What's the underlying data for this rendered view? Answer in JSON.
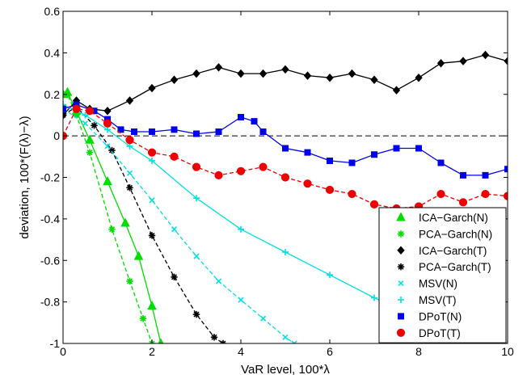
{
  "chart_data": {
    "type": "line",
    "xlabel": "VaR level, 100*λ",
    "ylabel": "deviation, 100*(F(λ)−λ)",
    "xlim": [
      0,
      10
    ],
    "ylim": [
      -1,
      0.6
    ],
    "xticks": [
      0,
      2,
      4,
      6,
      8,
      10
    ],
    "yticks": [
      -1,
      -0.8,
      -0.6,
      -0.4,
      -0.2,
      0,
      0.2,
      0.4,
      0.6
    ],
    "grid": false,
    "reference_line": {
      "y": 0,
      "style": "dashed",
      "color": "#000000"
    },
    "legend_position": "bottom-right",
    "series": [
      {
        "name": "ICA−Garch(N)",
        "color": "#00dd00",
        "marker": "triangle",
        "line": "solid",
        "x": [
          0,
          0.1,
          0.3,
          0.6,
          1.0,
          1.4,
          1.7,
          2.0,
          2.2
        ],
        "y": [
          0.2,
          0.21,
          0.12,
          -0.02,
          -0.22,
          -0.42,
          -0.58,
          -0.82,
          -1.0
        ]
      },
      {
        "name": "PCA−Garch(N)",
        "color": "#00dd00",
        "marker": "star",
        "line": "dashed",
        "x": [
          0,
          0.1,
          0.3,
          0.6,
          1.1,
          1.5,
          1.8,
          2.0
        ],
        "y": [
          0.2,
          0.2,
          0.1,
          -0.08,
          -0.45,
          -0.7,
          -0.88,
          -1.0
        ]
      },
      {
        "name": "ICA−Garch(T)",
        "color": "#000000",
        "marker": "diamond",
        "line": "solid",
        "x": [
          0,
          0.3,
          0.6,
          1.0,
          1.5,
          2.0,
          2.5,
          3.0,
          3.5,
          4.0,
          4.5,
          5.0,
          5.5,
          6.0,
          6.5,
          7.0,
          7.5,
          8.0,
          8.5,
          9.0,
          9.5,
          10.0
        ],
        "y": [
          0.1,
          0.17,
          0.13,
          0.12,
          0.17,
          0.23,
          0.27,
          0.3,
          0.33,
          0.3,
          0.3,
          0.32,
          0.29,
          0.28,
          0.3,
          0.27,
          0.22,
          0.28,
          0.35,
          0.36,
          0.39,
          0.36
        ]
      },
      {
        "name": "PCA−Garch(T)",
        "color": "#000000",
        "marker": "star",
        "line": "dashed",
        "x": [
          0,
          0.3,
          0.7,
          1.1,
          1.5,
          2.0,
          2.5,
          3.0,
          3.4,
          3.6
        ],
        "y": [
          0.1,
          0.14,
          0.05,
          -0.07,
          -0.25,
          -0.48,
          -0.68,
          -0.86,
          -0.97,
          -1.0
        ]
      },
      {
        "name": "MSV(N)",
        "color": "#00e0e0",
        "marker": "x",
        "line": "dashed",
        "x": [
          0,
          0.5,
          1.0,
          1.5,
          2.0,
          2.5,
          3.0,
          3.5,
          4.0,
          4.5,
          5.0,
          5.2
        ],
        "y": [
          0.13,
          0.06,
          -0.05,
          -0.18,
          -0.31,
          -0.45,
          -0.58,
          -0.7,
          -0.79,
          -0.88,
          -0.97,
          -1.0
        ]
      },
      {
        "name": "MSV(T)",
        "color": "#00e0e0",
        "marker": "plus",
        "line": "solid",
        "x": [
          0,
          0.5,
          1.0,
          1.5,
          2.0,
          3.0,
          4.0,
          5.0,
          6.0,
          7.0,
          8.0,
          9.0,
          10.0
        ],
        "y": [
          0.15,
          0.1,
          0.03,
          -0.05,
          -0.12,
          -0.3,
          -0.45,
          -0.56,
          -0.67,
          -0.78,
          -0.88,
          -0.95,
          -1.0
        ]
      },
      {
        "name": "DPoT(N)",
        "color": "#0000ee",
        "marker": "square",
        "line": "solid",
        "x": [
          0,
          0.3,
          0.7,
          1.0,
          1.3,
          1.6,
          2.0,
          2.5,
          3.0,
          3.5,
          4.0,
          4.3,
          4.5,
          5.0,
          5.5,
          6.0,
          6.5,
          7.0,
          7.5,
          8.0,
          8.5,
          9.0,
          9.5,
          10.0
        ],
        "y": [
          0.13,
          0.15,
          0.12,
          0.08,
          0.03,
          0.02,
          0.02,
          0.03,
          0.01,
          0.02,
          0.09,
          0.07,
          0.02,
          -0.06,
          -0.08,
          -0.12,
          -0.13,
          -0.09,
          -0.06,
          -0.06,
          -0.13,
          -0.19,
          -0.19,
          -0.16
        ]
      },
      {
        "name": "DPoT(T)",
        "color": "#ee0000",
        "marker": "circle",
        "line": "dashed",
        "x": [
          0,
          0.3,
          0.6,
          1.0,
          1.5,
          2.0,
          2.5,
          3.0,
          3.5,
          4.0,
          4.5,
          5.0,
          5.5,
          6.0,
          6.5,
          7.0,
          7.5,
          8.0,
          8.5,
          9.0,
          9.5,
          10.0
        ],
        "y": [
          0,
          0.13,
          0.12,
          0.06,
          -0.02,
          -0.08,
          -0.1,
          -0.15,
          -0.19,
          -0.17,
          -0.15,
          -0.2,
          -0.23,
          -0.26,
          -0.28,
          -0.33,
          -0.35,
          -0.34,
          -0.28,
          -0.32,
          -0.28,
          -0.29
        ]
      }
    ]
  }
}
